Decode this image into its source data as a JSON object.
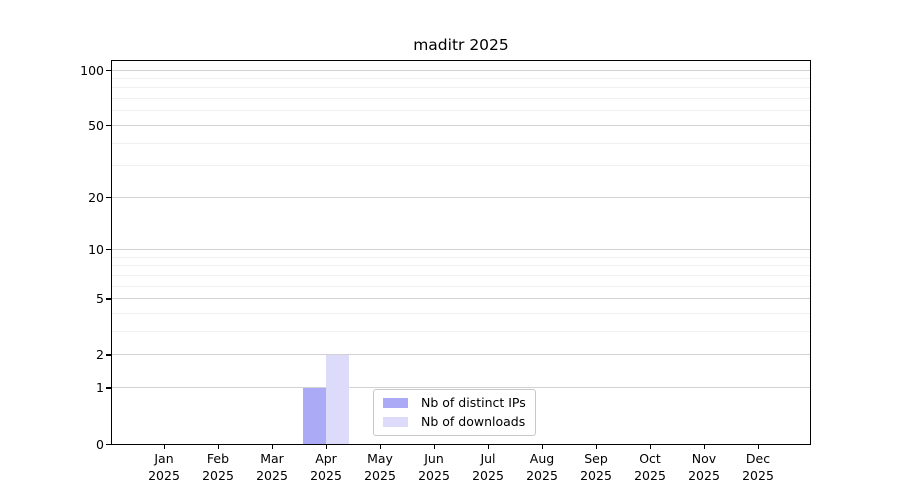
{
  "figure": {
    "background": "#ffffff"
  },
  "chart_data": {
    "type": "bar",
    "title": "maditr 2025",
    "categories": [
      "Jan 2025",
      "Feb 2025",
      "Mar 2025",
      "Apr 2025",
      "May 2025",
      "Jun 2025",
      "Jul 2025",
      "Aug 2025",
      "Sep 2025",
      "Oct 2025",
      "Nov 2025",
      "Dec 2025"
    ],
    "series": [
      {
        "name": "Nb of distinct IPs",
        "color": "#aaaaf7",
        "values": [
          0,
          0,
          0,
          1,
          0,
          0,
          0,
          0,
          0,
          0,
          0,
          0
        ]
      },
      {
        "name": "Nb of downloads",
        "color": "#dcdcfa",
        "values": [
          0,
          0,
          0,
          2,
          0,
          0,
          0,
          0,
          0,
          0,
          0,
          0
        ]
      }
    ],
    "xlabel": "",
    "ylabel": "",
    "y_axis": {
      "scale": "log1p",
      "tick_values": [
        0,
        1,
        2,
        5,
        10,
        20,
        50,
        100
      ],
      "minor_gridline_values": [
        3,
        4,
        6,
        7,
        8,
        9,
        30,
        40,
        60,
        70,
        80,
        90
      ],
      "ylim": [
        0,
        112
      ]
    },
    "grid": true,
    "grid_color_major": "#d2d2d2",
    "grid_color_minor": "#f0f0f0",
    "axis_color": "#000000",
    "legend": {
      "position": "lower-center",
      "entries": [
        "Nb of distinct IPs",
        "Nb of downloads"
      ]
    }
  }
}
